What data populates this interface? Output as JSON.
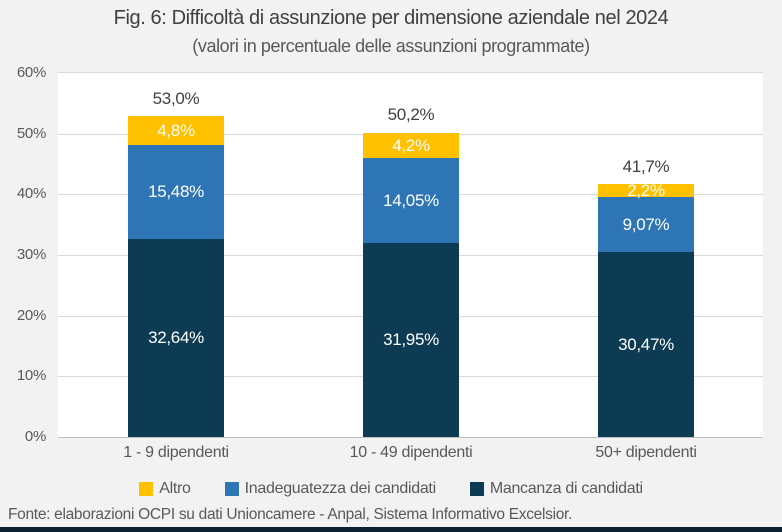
{
  "title": "Fig. 6: Difficoltà di assunzione per dimensione aziendale nel 2024",
  "subtitle": "(valori in percentuale delle assunzioni programmate)",
  "footer": "Fonte: elaborazioni OCPI su dati Unioncamere - Anpal, Sistema Informativo Excelsior.",
  "chart_data": {
    "type": "bar",
    "stacked": true,
    "title": "Fig. 6: Difficoltà di assunzione per dimensione aziendale nel 2024",
    "subtitle": "(valori in percentuale delle assunzioni programmate)",
    "categories": [
      "1 - 9 dipendenti",
      "10 - 49 dipendenti",
      "50+ dipendenti"
    ],
    "series": [
      {
        "name": "Mancanza di candidati",
        "color": "#0E3B54",
        "values": [
          32.64,
          31.95,
          30.47
        ],
        "labels": [
          "32,64%",
          "31,95%",
          "30,47%"
        ]
      },
      {
        "name": "Inadeguatezza dei candidati",
        "color": "#2E75B6",
        "values": [
          15.48,
          14.05,
          9.07
        ],
        "labels": [
          "15,48%",
          "14,05%",
          "9,07%"
        ]
      },
      {
        "name": "Altro",
        "color": "#FFC000",
        "values": [
          4.8,
          4.2,
          2.2
        ],
        "labels": [
          "4,8%",
          "4,2%",
          "2,2%"
        ]
      }
    ],
    "totals": {
      "values": [
        53.0,
        50.2,
        41.7
      ],
      "labels": [
        "53,0%",
        "50,2%",
        "41,7%"
      ]
    },
    "ylim": [
      0,
      60
    ],
    "yticks": {
      "values": [
        0,
        10,
        20,
        30,
        40,
        50,
        60
      ],
      "labels": [
        "0%",
        "10%",
        "20%",
        "30%",
        "40%",
        "50%",
        "60%"
      ]
    },
    "grid": true,
    "legend_position": "bottom",
    "legend": [
      {
        "label": "Altro",
        "color": "#FFC000"
      },
      {
        "label": "Inadeguatezza dei candidati",
        "color": "#2E75B6"
      },
      {
        "label": "Mancanza di candidati",
        "color": "#0E3B54"
      }
    ]
  }
}
